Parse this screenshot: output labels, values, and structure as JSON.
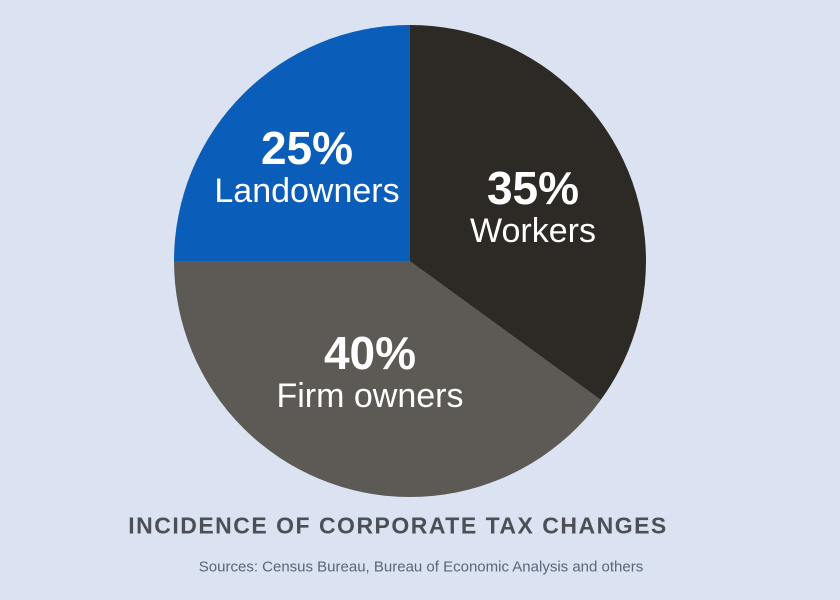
{
  "chart_data": {
    "type": "pie",
    "title": "INCIDENCE OF CORPORATE TAX CHANGES",
    "source_note": "Sources: Census Bureau, Bureau of Economic Analysis and others",
    "start_angle_deg": 0,
    "direction": "clockwise",
    "slices": [
      {
        "label": "Workers",
        "value_pct": 35,
        "pct_label": "35%",
        "color": "#2d2a25"
      },
      {
        "label": "Firm owners",
        "value_pct": 40,
        "pct_label": "40%",
        "color": "#5d5954"
      },
      {
        "label": "Landowners",
        "value_pct": 25,
        "pct_label": "25%",
        "color": "#0a5db8"
      }
    ],
    "label_color": "#ffffff",
    "title_color": "#4c4f55",
    "source_color": "#5a6578",
    "background_color": "#dbe3f2",
    "legend": "none",
    "labels_inside_slices": true
  }
}
